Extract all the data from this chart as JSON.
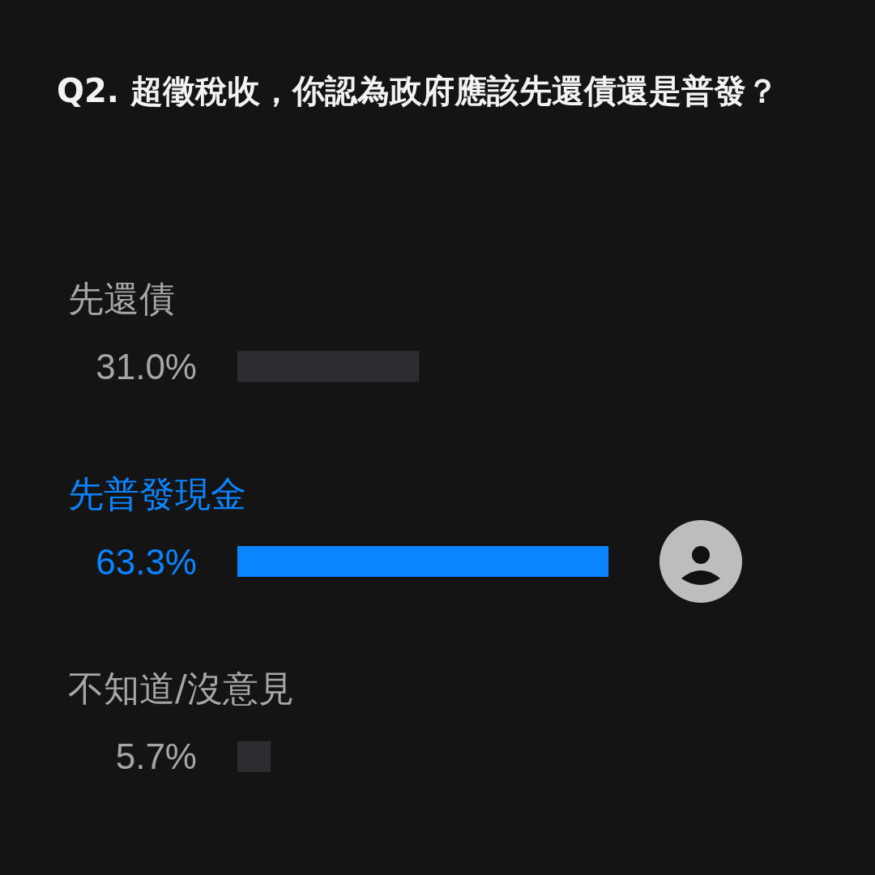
{
  "chart_data": {
    "type": "bar",
    "orientation": "horizontal",
    "title": "Q2. 超徵稅收，你認為政府應該先還債還是普發？",
    "categories": [
      "先還債",
      "先普發現金",
      "不知道/沒意見"
    ],
    "values": [
      31.0,
      63.3,
      5.7
    ],
    "value_labels": [
      "31.0%",
      "63.3%",
      "5.7%"
    ],
    "colors": [
      "#2c2d31",
      "#0a84ff",
      "#2c2d31"
    ],
    "grid": false
  }
}
